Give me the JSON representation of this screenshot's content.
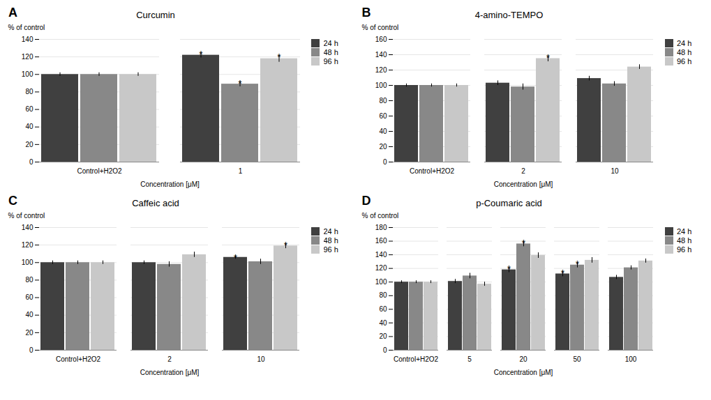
{
  "chart_data": [
    {
      "type": "bar",
      "label": "A",
      "title": "Curcumin",
      "xlabel": "Concentration [μM]",
      "ylabel": "% of control",
      "ylim": [
        0,
        140
      ],
      "yticks": [
        0,
        20,
        40,
        60,
        80,
        100,
        120,
        140
      ],
      "grid": true,
      "legend": "right",
      "categories": [
        "Control+H2O2",
        "1"
      ],
      "series": [
        {
          "name": "24 h",
          "color": "#404040",
          "values": [
            100,
            122
          ],
          "errors": [
            2,
            3
          ],
          "annotations": [
            null,
            "*"
          ]
        },
        {
          "name": "48 h",
          "color": "#888888",
          "values": [
            100,
            89
          ],
          "errors": [
            2,
            3
          ],
          "annotations": [
            null,
            "*"
          ]
        },
        {
          "name": "96 h",
          "color": "#c8c8c8",
          "values": [
            100,
            118
          ],
          "errors": [
            2,
            4
          ],
          "annotations": [
            null,
            "*"
          ]
        }
      ]
    },
    {
      "type": "bar",
      "label": "B",
      "title": "4-amino-TEMPO",
      "xlabel": "Concentration [μM]",
      "ylabel": "% of control",
      "ylim": [
        0,
        160
      ],
      "yticks": [
        0,
        20,
        40,
        60,
        80,
        100,
        120,
        140,
        160
      ],
      "grid": true,
      "legend": "right",
      "categories": [
        "Control+H2O2",
        "2",
        "10"
      ],
      "series": [
        {
          "name": "24 h",
          "color": "#404040",
          "values": [
            100,
            103,
            109
          ],
          "errors": [
            2,
            3,
            3
          ],
          "annotations": [
            null,
            null,
            null
          ]
        },
        {
          "name": "48 h",
          "color": "#888888",
          "values": [
            100,
            98,
            102
          ],
          "errors": [
            2,
            4,
            3
          ],
          "annotations": [
            null,
            null,
            null
          ]
        },
        {
          "name": "96 h",
          "color": "#c8c8c8",
          "values": [
            100,
            135,
            124
          ],
          "errors": [
            2,
            4,
            3
          ],
          "annotations": [
            null,
            "*",
            null
          ]
        }
      ]
    },
    {
      "type": "bar",
      "label": "C",
      "title": "Caffeic acid",
      "xlabel": "Concentration [μM]",
      "ylabel": "% of control",
      "ylim": [
        0,
        140
      ],
      "yticks": [
        0,
        20,
        40,
        60,
        80,
        100,
        120,
        140
      ],
      "grid": true,
      "legend": "right",
      "categories": [
        "Control+H2O2",
        "2",
        "10"
      ],
      "series": [
        {
          "name": "24 h",
          "color": "#404040",
          "values": [
            100,
            100,
            106
          ],
          "errors": [
            2,
            2,
            2
          ],
          "annotations": [
            null,
            null,
            "*"
          ]
        },
        {
          "name": "48 h",
          "color": "#888888",
          "values": [
            100,
            98,
            101
          ],
          "errors": [
            2,
            3,
            3
          ],
          "annotations": [
            null,
            null,
            null
          ]
        },
        {
          "name": "96 h",
          "color": "#c8c8c8",
          "values": [
            100,
            109,
            119
          ],
          "errors": [
            2,
            3,
            3
          ],
          "annotations": [
            null,
            null,
            "*"
          ]
        }
      ]
    },
    {
      "type": "bar",
      "label": "D",
      "title": "p-Coumaric acid",
      "xlabel": "Concentration [μM]",
      "ylabel": "% of control",
      "ylim": [
        0,
        180
      ],
      "yticks": [
        0,
        20,
        40,
        60,
        80,
        100,
        120,
        140,
        160,
        180
      ],
      "grid": true,
      "legend": "right",
      "categories": [
        "Control+H2O2",
        "5",
        "20",
        "50",
        "100"
      ],
      "series": [
        {
          "name": "24 h",
          "color": "#404040",
          "values": [
            100,
            101,
            118,
            112,
            107
          ],
          "errors": [
            2,
            3,
            4,
            4,
            3
          ],
          "annotations": [
            null,
            null,
            "*",
            "*",
            null
          ]
        },
        {
          "name": "48 h",
          "color": "#888888",
          "values": [
            100,
            109,
            156,
            125,
            121
          ],
          "errors": [
            2,
            4,
            4,
            4,
            3
          ],
          "annotations": [
            null,
            null,
            "*",
            "*",
            null
          ]
        },
        {
          "name": "96 h",
          "color": "#c8c8c8",
          "values": [
            100,
            97,
            139,
            132,
            131
          ],
          "errors": [
            2,
            3,
            4,
            4,
            3
          ],
          "annotations": [
            null,
            null,
            null,
            null,
            null
          ]
        }
      ]
    }
  ]
}
